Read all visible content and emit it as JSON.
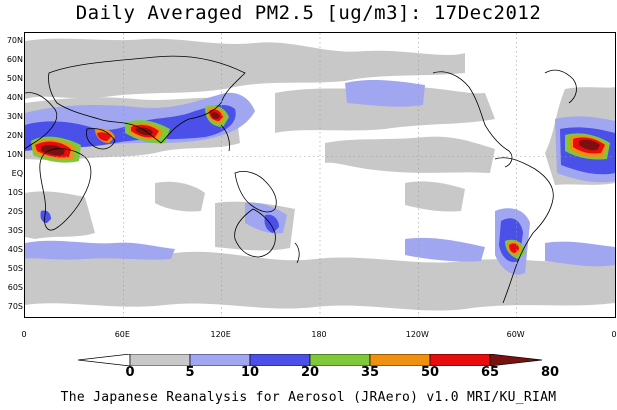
{
  "title": "Daily Averaged PM2.5 [ug/m3]: 17Dec2012",
  "footer": "The Japanese Reanalysis for Aerosol (JRAero) v1.0 MRI/KU_RIAM",
  "lat_labels": [
    "70N",
    "60N",
    "50N",
    "40N",
    "30N",
    "20N",
    "10N",
    "EQ",
    "10S",
    "20S",
    "30S",
    "40S",
    "50S",
    "60S",
    "70S"
  ],
  "lon_labels": [
    "0",
    "60E",
    "120E",
    "180",
    "120W",
    "60W",
    "0"
  ],
  "colorbar": {
    "ticks": [
      "0",
      "5",
      "10",
      "20",
      "35",
      "50",
      "65",
      "80"
    ],
    "colors": [
      "#ffffff",
      "#c8c8c8",
      "#a0a6f0",
      "#4a50e8",
      "#7ec83a",
      "#f09010",
      "#e80c0c",
      "#7a1010"
    ]
  },
  "chart_data": {
    "type": "heatmap",
    "title": "Daily Averaged PM2.5 [ug/m3]: 17Dec2012",
    "quantity": "PM2.5",
    "units": "ug/m3",
    "date": "17Dec2012",
    "projection": "cylindrical equidistant",
    "lon_range": [
      0,
      360
    ],
    "lat_range": [
      -75,
      75
    ],
    "contour_levels": [
      0,
      5,
      10,
      20,
      35,
      50,
      65,
      80
    ],
    "hotspots": [
      {
        "region": "West Africa (Sahel)",
        "max_level": "80"
      },
      {
        "region": "Arabian Peninsula",
        "max_level": "80"
      },
      {
        "region": "Northern India",
        "max_level": "65"
      },
      {
        "region": "Eastern China",
        "max_level": "80"
      },
      {
        "region": "Northern South America",
        "max_level": "80"
      },
      {
        "region": "Central South America",
        "max_level": "65"
      }
    ]
  }
}
